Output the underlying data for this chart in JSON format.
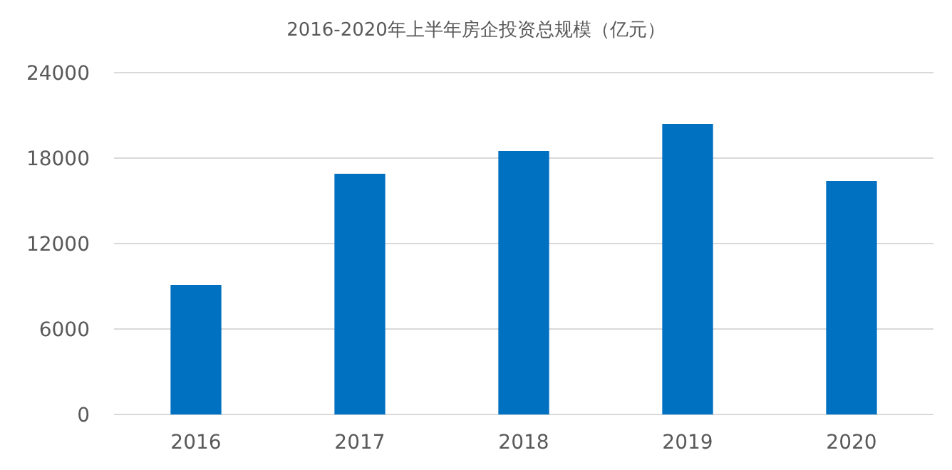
{
  "chart_data": {
    "type": "bar",
    "title": "2016-2020年上半年房企投资总规模（亿元）",
    "categories": [
      "2016",
      "2017",
      "2018",
      "2019",
      "2020"
    ],
    "values": [
      9100,
      16900,
      18500,
      20400,
      16400
    ],
    "color": "#0070c0",
    "ylim": [
      0,
      24000
    ],
    "yticks": [
      0,
      6000,
      12000,
      18000,
      24000
    ],
    "grid": "y"
  }
}
